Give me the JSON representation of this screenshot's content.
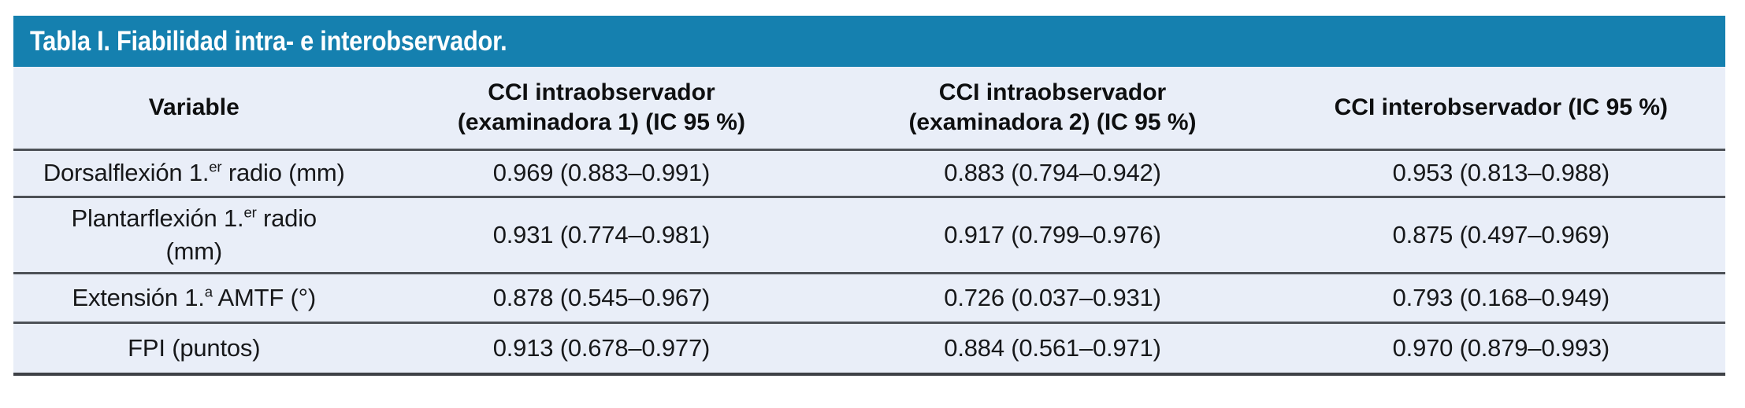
{
  "table": {
    "title": "Tabla I. Fiabilidad intra- e interobservador.",
    "title_bar_color": "#1580af",
    "body_bg": "#e9eef8",
    "rule_color": "#4d5157",
    "columns": [
      {
        "line1": "Variable",
        "line2": ""
      },
      {
        "line1": "CCI intraobservador",
        "line2": "(examinadora 1) (IC 95 %)"
      },
      {
        "line1": "CCI intraobservador",
        "line2": "(examinadora 2) (IC 95 %)"
      },
      {
        "line1": "CCI interobservador (IC 95 %)",
        "line2": ""
      }
    ],
    "rows": [
      {
        "variable": {
          "pre": "Dorsalflexión 1.",
          "sup": "er",
          "post": " radio (mm)",
          "line2": ""
        },
        "values": [
          "0.969 (0.883–0.991)",
          "0.883 (0.794–0.942)",
          "0.953 (0.813–0.988)"
        ]
      },
      {
        "variable": {
          "pre": "Plantarflexión 1.",
          "sup": "er",
          "post": " radio",
          "line2": "(mm)"
        },
        "values": [
          "0.931 (0.774–0.981)",
          "0.917 (0.799–0.976)",
          "0.875 (0.497–0.969)"
        ]
      },
      {
        "variable": {
          "pre": "Extensión 1.",
          "sup": "a",
          "post": " AMTF (°)",
          "line2": ""
        },
        "values": [
          "0.878 (0.545–0.967)",
          "0.726 (0.037–0.931)",
          "0.793 (0.168–0.949)"
        ]
      },
      {
        "variable": {
          "pre": "FPI (puntos)",
          "sup": "",
          "post": "",
          "line2": ""
        },
        "values": [
          "0.913 (0.678–0.977)",
          "0.884 (0.561–0.971)",
          "0.970 (0.879–0.993)"
        ]
      }
    ]
  }
}
